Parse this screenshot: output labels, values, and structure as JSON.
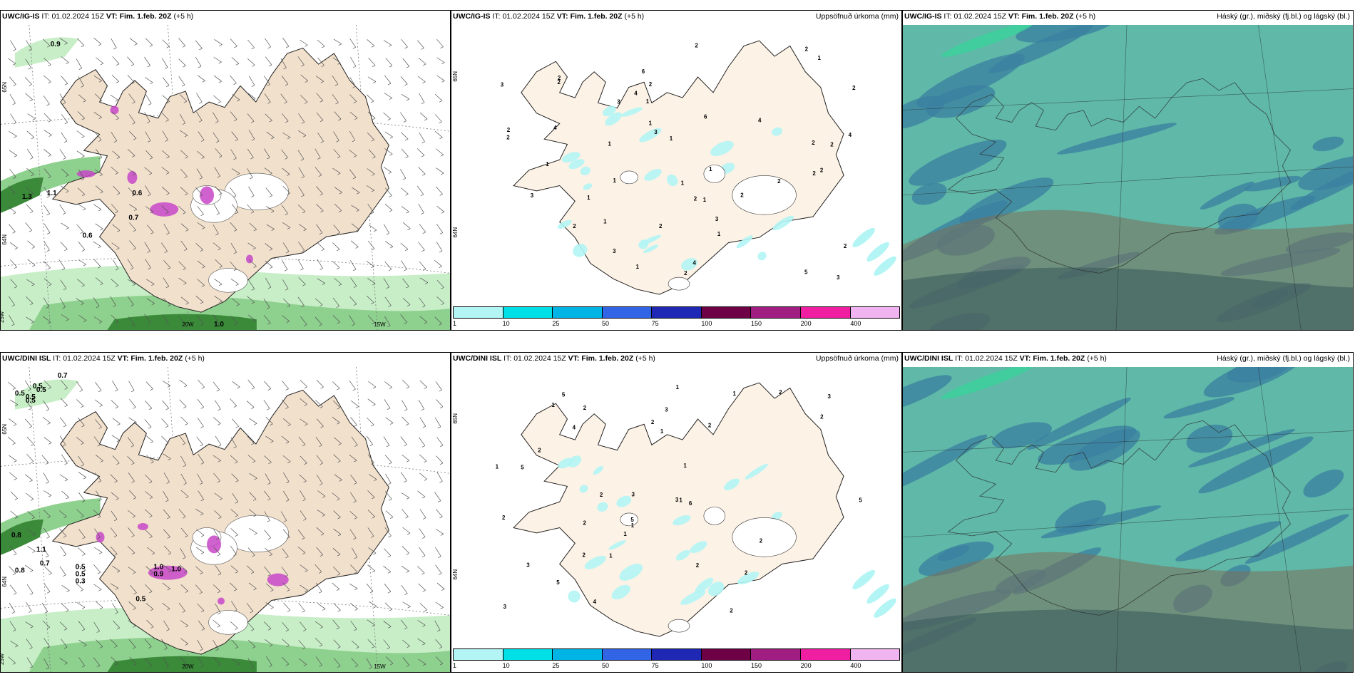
{
  "rows": [
    {
      "model": "UWC/IG-IS",
      "it_label": "IT:",
      "it_value": "01.02.2024 15Z",
      "vt_label": "VT:",
      "vt_value": "Fim. 1.feb. 20Z",
      "lead": "(+5 h)",
      "precip_title": "Uppsöfnuð úrkoma (mm)",
      "cloud_title": "Háský (gr.), miðský (fj.bl.) og lágský (bl.)",
      "left_labels": [
        "0.9",
        "1.3",
        "1.1",
        "0.6",
        "0.6",
        "0.7",
        "1.0"
      ],
      "left_axis": [
        "65N",
        "64N",
        "25W",
        "20W",
        "15W"
      ],
      "mid_labels": [
        "2",
        "1",
        "1",
        "1",
        "1",
        "2",
        "2",
        "2",
        "1",
        "1",
        "2",
        "2",
        "1",
        "3",
        "2",
        "3",
        "6",
        "4",
        "4",
        "6",
        "4",
        "3",
        "2",
        "2",
        "1",
        "2",
        "4",
        "5",
        "3",
        "4",
        "2",
        "3",
        "2",
        "1",
        "1",
        "2",
        "2",
        "1",
        "2",
        "3",
        "3",
        "2",
        "1",
        "1",
        "2",
        "2",
        "2",
        "1"
      ],
      "mid_axis": [
        "65N",
        "64N"
      ]
    },
    {
      "model": "UWC/DINI ISL",
      "it_label": "IT:",
      "it_value": "01.02.2024 15Z",
      "vt_label": "VT:",
      "vt_value": "Fim. 1.feb. 20Z",
      "lead": "(+5 h)",
      "precip_title": "Uppsöfnuð úrkoma (mm)",
      "cloud_title": "Háský (gr.), miðský (fj.bl.) og lágský (bl.)",
      "left_labels": [
        "0.7",
        "0.5",
        "0.5",
        "0.5",
        "0.5",
        "0.5",
        "0.8",
        "0.5",
        "1.1",
        "0.7",
        "0.8",
        "0.5",
        "0.5",
        "0.3",
        "1.0",
        "0.9",
        "1.0"
      ],
      "left_axis": [
        "65N",
        "64N",
        "25W",
        "20W",
        "15W"
      ],
      "mid_labels": [
        "1",
        "2",
        "1",
        "2",
        "3",
        "2",
        "3",
        "2",
        "5",
        "3",
        "1",
        "1",
        "2",
        "1",
        "2",
        "2",
        "1",
        "4",
        "5",
        "3",
        "3",
        "6",
        "5",
        "5",
        "5",
        "2",
        "4",
        "2",
        "2",
        "3",
        "2",
        "2",
        "1",
        "1",
        "2",
        "2",
        "1",
        "1"
      ],
      "mid_axis": [
        "65N",
        "64N"
      ]
    }
  ],
  "colorbar": {
    "ticks": [
      "1",
      "10",
      "25",
      "50",
      "75",
      "100",
      "150",
      "200",
      "400"
    ],
    "colors": [
      "#b3f5f5",
      "#00e0e6",
      "#00b4e6",
      "#3264e6",
      "#1e28b4",
      "#6e0046",
      "#a01e82",
      "#f01ea0",
      "#f0b4f0"
    ]
  },
  "colors": {
    "land": "#f1e0cc",
    "land_mid": "#fdf2e6",
    "snow_purple": "#c846c8",
    "green_light": "#c7eec7",
    "green_mid": "#8ed08e",
    "green_dark": "#3a8a3a",
    "cyan_light": "#b3f5f5",
    "cloud_teal": "#5fb8a8",
    "cloud_blue": "#3a7fa0",
    "cloud_brown": "#7a7058"
  }
}
